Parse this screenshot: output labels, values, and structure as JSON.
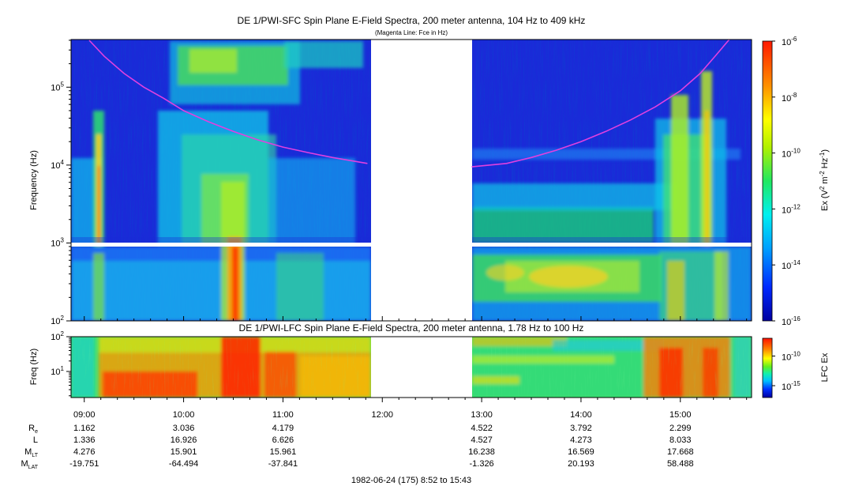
{
  "chart_data": [
    {
      "type": "heatmap",
      "title": "DE 1/PWI-SFC  Spin Plane E-Field Spectra, 200 meter antenna, 104 Hz to 409 kHz",
      "subtitle": "(Magenta Line: Fce in Hz)",
      "ylabel": "Frequency (Hz)",
      "y_scale": "log",
      "ylim_hz": [
        100,
        409000
      ],
      "y_ticks": [
        {
          "value": 100,
          "base": "10",
          "exp": "2"
        },
        {
          "value": 1000,
          "base": "10",
          "exp": "3"
        },
        {
          "value": 10000,
          "base": "10",
          "exp": "4"
        },
        {
          "value": 100000,
          "base": "10",
          "exp": "5"
        }
      ],
      "xlim_hours": [
        8.867,
        15.717
      ],
      "data_gap_hours": [
        11.883,
        12.883
      ],
      "colorbar": {
        "label_parts": {
          "a": "Ex (V",
          "b": "2",
          "c": " m",
          "d": "-2",
          "e": " Hz",
          "f": "-1",
          "g": ")"
        },
        "range_log10": [
          -16,
          -6
        ],
        "ticks": [
          {
            "value": -6,
            "base": "10",
            "exp": "-6"
          },
          {
            "value": -8,
            "base": "10",
            "exp": "-8"
          },
          {
            "value": -10,
            "base": "10",
            "exp": "-10"
          },
          {
            "value": -12,
            "base": "10",
            "exp": "-12"
          },
          {
            "value": -14,
            "base": "10",
            "exp": "-14"
          },
          {
            "value": -16,
            "base": "10",
            "exp": "-16"
          }
        ]
      },
      "fce_line": {
        "name": "Fce",
        "color": "#e040e0",
        "segments": [
          {
            "t": [
              9.05,
              9.2,
              9.4,
              9.6,
              9.8,
              10.0,
              10.25,
              10.5,
              10.75,
              11.0,
              11.25,
              11.5,
              11.85
            ],
            "f_hz": [
              400000,
              250000,
              150000,
              100000,
              72000,
              50000,
              36000,
              27000,
              21000,
              17000,
              14500,
              12500,
              10500
            ]
          },
          {
            "t": [
              12.9,
              13.25,
              13.5,
              13.75,
              14.0,
              14.25,
              14.5,
              14.75,
              15.0,
              15.2,
              15.35,
              15.5
            ],
            "f_hz": [
              9500,
              10500,
              12500,
              15500,
              20000,
              27000,
              38000,
              56000,
              90000,
              150000,
              250000,
              420000
            ]
          }
        ]
      }
    },
    {
      "type": "heatmap",
      "title": "DE 1/PWI-LFC  Spin Plane E-Field Spectra, 200 meter antenna, 1.78 Hz to 100 Hz",
      "ylabel": "Freq (Hz)",
      "y_scale": "log",
      "ylim_hz": [
        1.78,
        100
      ],
      "y_ticks": [
        {
          "value": 10,
          "base": "10",
          "exp": "1"
        },
        {
          "value": 100,
          "base": "10",
          "exp": "2"
        }
      ],
      "data_gap_hours": [
        11.883,
        12.883
      ],
      "colorbar": {
        "label": "LFC Ex",
        "range_log10": [
          -17,
          -7
        ],
        "ticks": [
          {
            "value": -10,
            "base": "10",
            "exp": "-10"
          },
          {
            "value": -15,
            "base": "10",
            "exp": "-15"
          }
        ]
      }
    }
  ],
  "time_axis": {
    "ticks": [
      {
        "hour": 9,
        "label": "09:00"
      },
      {
        "hour": 10,
        "label": "10:00"
      },
      {
        "hour": 11,
        "label": "11:00"
      },
      {
        "hour": 12,
        "label": "12:00"
      },
      {
        "hour": 13,
        "label": "13:00"
      },
      {
        "hour": 14,
        "label": "14:00"
      },
      {
        "hour": 15,
        "label": "15:00"
      }
    ]
  },
  "ephemeris": {
    "rows": [
      {
        "base": "R",
        "sub": "e",
        "values": [
          "1.162",
          "3.036",
          "4.179",
          "",
          "4.522",
          "3.792",
          "2.299"
        ]
      },
      {
        "base": "L",
        "sub": "",
        "values": [
          "1.336",
          "16.926",
          "6.626",
          "",
          "4.527",
          "4.273",
          "8.033"
        ]
      },
      {
        "base": "M",
        "sub": "LT",
        "values": [
          "4.276",
          "15.901",
          "15.961",
          "",
          "16.238",
          "16.569",
          "17.668"
        ]
      },
      {
        "base": "M",
        "sub": "LAT",
        "values": [
          "-19.751",
          "-64.494",
          "-37.841",
          "",
          "-1.326",
          "20.193",
          "58.488"
        ]
      }
    ]
  },
  "footer": "1982-06-24 (175) 8:52 to 15:43"
}
